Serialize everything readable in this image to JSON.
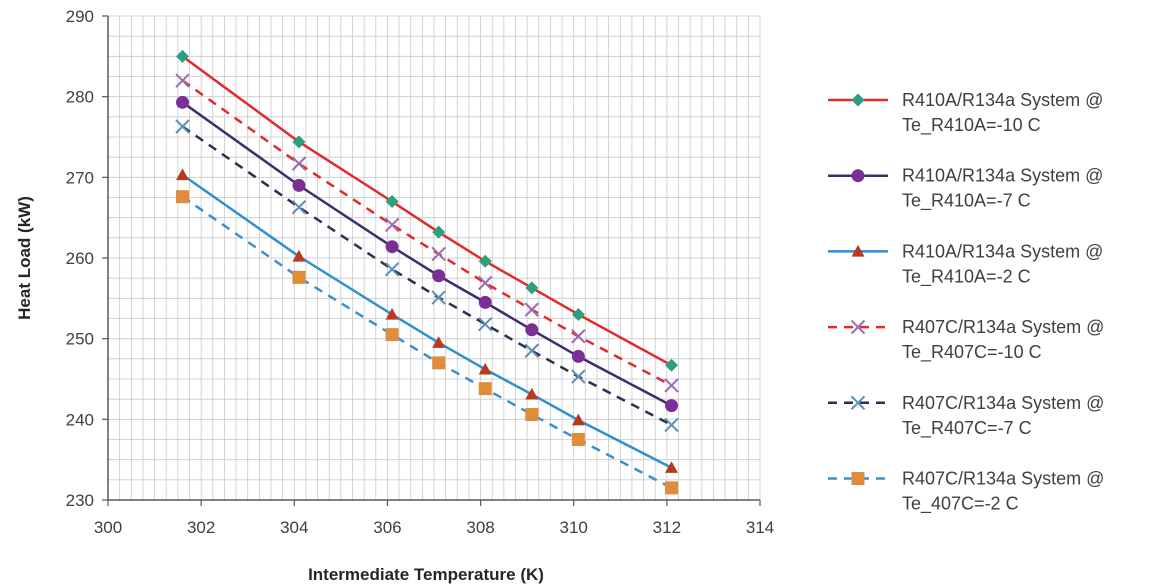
{
  "chart_data": {
    "type": "line",
    "xlabel": "Intermediate Temperature (K)",
    "ylabel": "Heat Load (kW)",
    "xlim": [
      300,
      314
    ],
    "ylim": [
      230,
      290
    ],
    "xticks": [
      "300",
      "302",
      "304",
      "306",
      "308",
      "310",
      "312",
      "314"
    ],
    "yticks": [
      "230",
      "240",
      "250",
      "260",
      "270",
      "280",
      "290"
    ],
    "grid": true,
    "legend_position": "right",
    "x": [
      301.6,
      304.1,
      306.1,
      307.1,
      308.1,
      309.1,
      310.1,
      312.1
    ],
    "series": [
      {
        "name_line1": "R410A/R134a System @",
        "name_line2": "Te_R410A=-10 C",
        "color": "#e32a2a",
        "dash": "solid",
        "marker": "diamond",
        "marker_color": "#2e9e7e",
        "values": [
          285.0,
          274.4,
          267.0,
          263.2,
          259.6,
          256.3,
          253.0,
          246.7
        ]
      },
      {
        "name_line1": "R410A/R134a System @",
        "name_line2": "Te_R410A=-7 C",
        "color": "#3d2f6e",
        "dash": "solid",
        "marker": "circle",
        "marker_color": "#7a2f96",
        "values": [
          279.3,
          269.0,
          261.4,
          257.8,
          254.5,
          251.1,
          247.8,
          241.7
        ]
      },
      {
        "name_line1": "R410A/R134a System @",
        "name_line2": "Te_R410A=-2 C",
        "color": "#2f8fcf",
        "dash": "solid",
        "marker": "triangle",
        "marker_color": "#b83a1e",
        "values": [
          270.3,
          260.2,
          253.0,
          249.5,
          246.2,
          243.1,
          239.9,
          234.0
        ]
      },
      {
        "name_line1": "R407C/R134a System @",
        "name_line2": "Te_R407C=-10 C",
        "color": "#e32a2a",
        "dash": "dashed",
        "marker": "x",
        "marker_color": "#9b6bb0",
        "values": [
          282.0,
          271.7,
          264.1,
          260.5,
          256.9,
          253.6,
          250.3,
          244.2
        ]
      },
      {
        "name_line1": "R407C/R134a System @",
        "name_line2": "Te_R407C=-7 C",
        "color": "#2b3050",
        "dash": "dashed",
        "marker": "x",
        "marker_color": "#5b8fb8",
        "values": [
          276.3,
          266.3,
          258.6,
          255.1,
          251.8,
          248.5,
          245.3,
          239.3
        ]
      },
      {
        "name_line1": "R407C/R134a System @",
        "name_line2": "Te_407C=-2 C",
        "color": "#3a8fd0",
        "dash": "dashed",
        "marker": "square",
        "marker_color": "#e08c3a",
        "values": [
          267.6,
          257.6,
          250.5,
          247.0,
          243.8,
          240.6,
          237.5,
          231.5
        ]
      }
    ]
  }
}
